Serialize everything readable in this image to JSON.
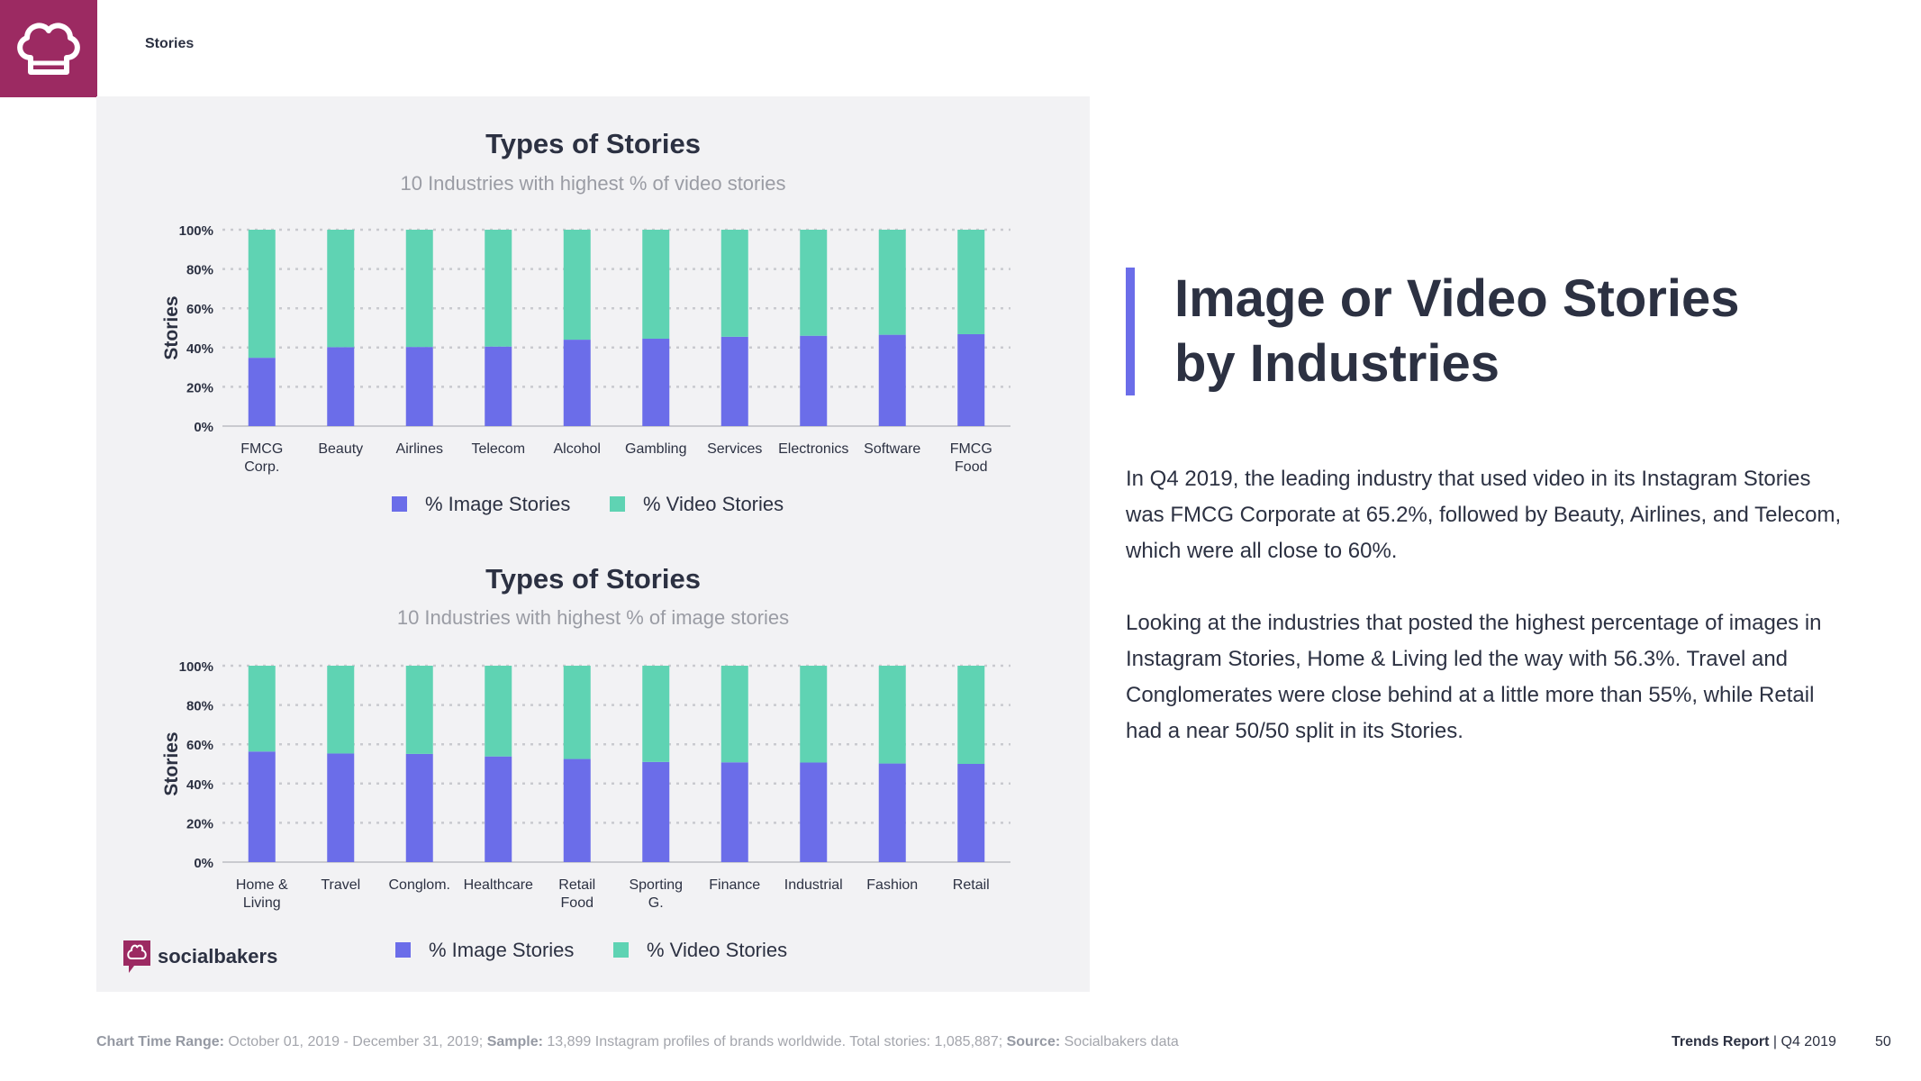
{
  "header": {
    "section_label": "Stories",
    "logo_icon": "chef-hat-icon"
  },
  "headline": {
    "line1": "Image or Video Stories",
    "line2": "by Industries"
  },
  "body": {
    "paragraph1": "In Q4 2019, the leading industry that used video in its Instagram Stories was FMCG Corporate at 65.2%, followed by Beauty, Airlines, and Telecom, which were all close to 60%.",
    "paragraph2": "Looking at the industries that posted the highest percentage of images in Instagram Stories, Home & Living led the way with 56.3%. Travel and Conglomerates were close behind at a little more than 55%, while Retail had a near 50/50 split in its Stories."
  },
  "brand": {
    "name": "socialbakers",
    "icon": "chat-chef-icon"
  },
  "footer": {
    "range_label": "Chart Time Range:",
    "range_value": " October  01, 2019 - December 31, 2019; ",
    "sample_label": "Sample:",
    "sample_value": " 13,899 Instagram profiles of brands worldwide. Total stories: 1,085,887; ",
    "source_label": "Source:",
    "source_value": " Socialbakers data",
    "report_name": "Trends Report",
    "report_period": " | Q4 2019",
    "page_number": "50"
  },
  "colors": {
    "image": "#6b6de9",
    "video": "#5fd3b3",
    "accent": "#6b6de9",
    "brand": "#9c2a62"
  },
  "chart_data": [
    {
      "type": "bar",
      "stacked": true,
      "title": "Types of Stories",
      "subtitle": "10 Industries with highest % of video stories",
      "ylabel": "Stories",
      "ylim": [
        0,
        100
      ],
      "yticks": [
        "0%",
        "20%",
        "40%",
        "60%",
        "80%",
        "100%"
      ],
      "categories": [
        [
          "FMCG",
          "Corp."
        ],
        [
          "Beauty"
        ],
        [
          "Airlines"
        ],
        [
          "Telecom"
        ],
        [
          "Alcohol"
        ],
        [
          "Gambling"
        ],
        [
          "Services"
        ],
        [
          "Electronics"
        ],
        [
          "Software"
        ],
        [
          "FMCG",
          "Food"
        ]
      ],
      "series": [
        {
          "name": "% Image Stories",
          "values": [
            34.8,
            40.2,
            40.3,
            40.5,
            44.0,
            44.5,
            45.5,
            46.0,
            46.5,
            46.8
          ]
        },
        {
          "name": "% Video Stories",
          "values": [
            65.2,
            59.8,
            59.7,
            59.5,
            56.0,
            55.5,
            54.5,
            54.0,
            53.5,
            53.2
          ]
        }
      ],
      "grid": true,
      "legend": "bottom"
    },
    {
      "type": "bar",
      "stacked": true,
      "title": "Types of Stories",
      "subtitle": "10 Industries with highest % of image stories",
      "ylabel": "Stories",
      "ylim": [
        0,
        100
      ],
      "yticks": [
        "0%",
        "20%",
        "40%",
        "60%",
        "80%",
        "100%"
      ],
      "categories": [
        [
          "Home &",
          "Living"
        ],
        [
          "Travel"
        ],
        [
          "Conglom."
        ],
        [
          "Healthcare"
        ],
        [
          "Retail",
          "Food"
        ],
        [
          "Sporting",
          "G."
        ],
        [
          "Finance"
        ],
        [
          "Industrial"
        ],
        [
          "Fashion"
        ],
        [
          "Retail"
        ]
      ],
      "series": [
        {
          "name": "% Image Stories",
          "values": [
            56.3,
            55.3,
            55.1,
            53.8,
            52.5,
            51.0,
            50.8,
            50.7,
            50.2,
            50.0
          ]
        },
        {
          "name": "% Video Stories",
          "values": [
            43.7,
            44.7,
            44.9,
            46.2,
            47.5,
            49.0,
            49.2,
            49.3,
            49.8,
            50.0
          ]
        }
      ],
      "grid": true,
      "legend": "bottom"
    }
  ]
}
